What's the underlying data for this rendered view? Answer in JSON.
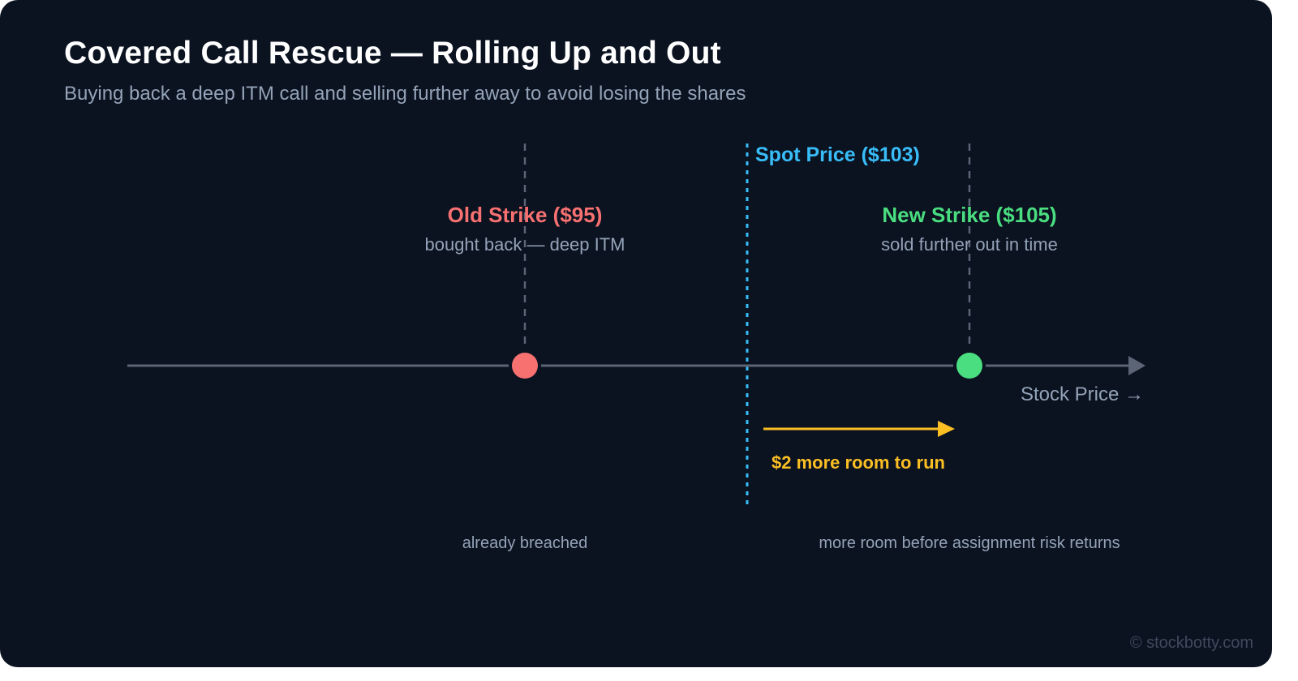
{
  "header": {
    "title": "Covered Call Rescue — Rolling Up and Out",
    "subtitle": "Buying back a deep ITM call and selling further away to avoid losing the shares"
  },
  "diagram": {
    "axis_label": "Stock Price →",
    "spot": {
      "label": "Spot Price ($103)",
      "color": "#38bdf8"
    },
    "old_strike": {
      "label": "Old Strike ($95)",
      "sublabel": "bought back — deep ITM",
      "note": "already breached",
      "color": "#f87171"
    },
    "new_strike": {
      "label": "New Strike ($105)",
      "sublabel": "sold further out in time",
      "note": "more room before assignment risk returns",
      "color": "#4ade80"
    },
    "room": {
      "label": "$2 more room to run",
      "color": "#fbbf24"
    }
  },
  "footer": {
    "watermark": "© stockbotty.com"
  }
}
